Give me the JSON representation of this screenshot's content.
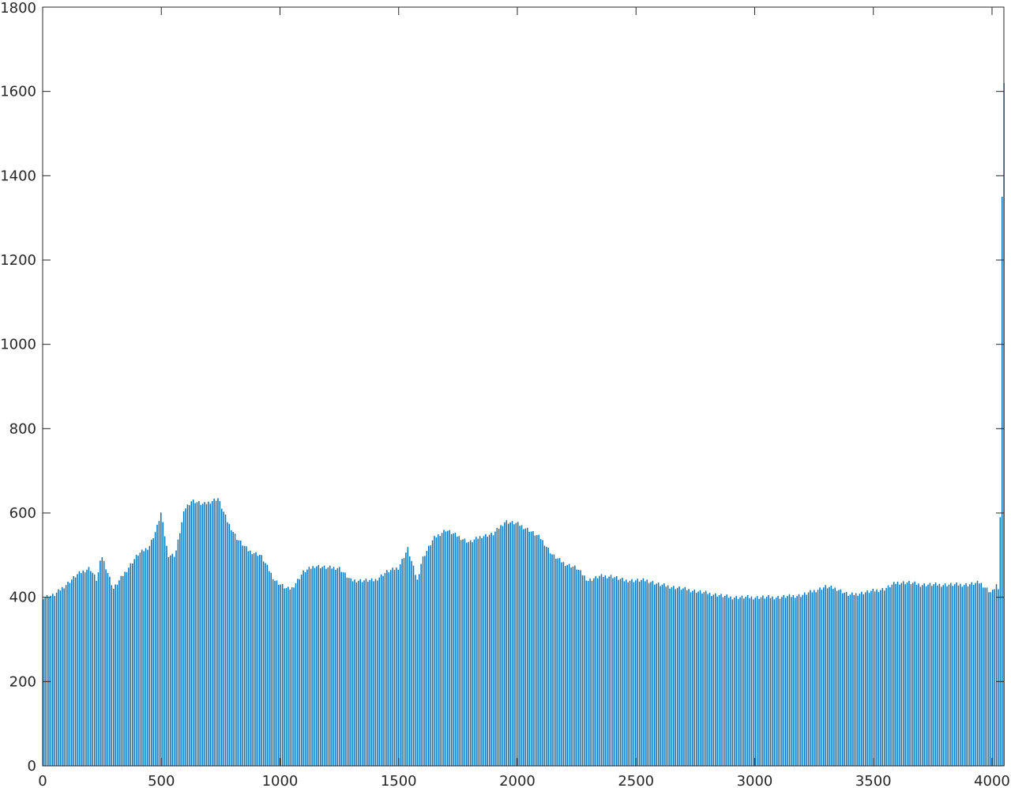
{
  "chart_data": {
    "type": "bar",
    "title": "",
    "xlabel": "",
    "ylabel": "",
    "xlim": [
      0,
      4050
    ],
    "ylim": [
      0,
      1800
    ],
    "grid": false,
    "bar_color": "#0072bd",
    "x_ticks": [
      0,
      500,
      1000,
      1500,
      2000,
      2500,
      3000,
      3500,
      4000
    ],
    "x_tick_labels": [
      "0",
      "500",
      "1000",
      "1500",
      "2000",
      "2500",
      "3000",
      "3500",
      "4000"
    ],
    "y_ticks": [
      0,
      200,
      400,
      600,
      800,
      1000,
      1200,
      1400,
      1600,
      1800
    ],
    "y_tick_labels": [
      "0",
      "200",
      "400",
      "600",
      "800",
      "1000",
      "1200",
      "1400",
      "1600",
      "1800"
    ],
    "profile_x": [
      0,
      50,
      100,
      150,
      200,
      230,
      250,
      300,
      350,
      400,
      450,
      480,
      500,
      530,
      560,
      600,
      630,
      680,
      740,
      780,
      820,
      870,
      920,
      980,
      1030,
      1050,
      1100,
      1150,
      1200,
      1250,
      1300,
      1350,
      1400,
      1450,
      1500,
      1540,
      1580,
      1600,
      1650,
      1700,
      1750,
      1800,
      1850,
      1900,
      1950,
      2000,
      2050,
      2100,
      2150,
      2200,
      2250,
      2300,
      2350,
      2400,
      2450,
      2500,
      2550,
      2600,
      2700,
      2800,
      2900,
      3000,
      3100,
      3200,
      3300,
      3350,
      3400,
      3450,
      3500,
      3550,
      3600,
      3650,
      3700,
      3750,
      3800,
      3850,
      3900,
      3950,
      3980,
      4000,
      4020,
      4030,
      4038,
      4042,
      4046,
      4050
    ],
    "profile_y": [
      400,
      405,
      430,
      455,
      470,
      440,
      500,
      420,
      460,
      500,
      520,
      560,
      600,
      500,
      500,
      610,
      630,
      620,
      635,
      580,
      540,
      510,
      500,
      440,
      420,
      420,
      460,
      475,
      470,
      470,
      440,
      440,
      440,
      460,
      470,
      515,
      440,
      490,
      540,
      560,
      545,
      530,
      545,
      550,
      580,
      575,
      560,
      540,
      500,
      480,
      470,
      440,
      450,
      450,
      440,
      440,
      440,
      430,
      420,
      410,
      400,
      400,
      400,
      405,
      425,
      420,
      405,
      410,
      415,
      420,
      435,
      435,
      430,
      430,
      430,
      430,
      430,
      435,
      420,
      410,
      430,
      410,
      650,
      1100,
      1600,
      1620
    ],
    "bar_width": 8
  }
}
